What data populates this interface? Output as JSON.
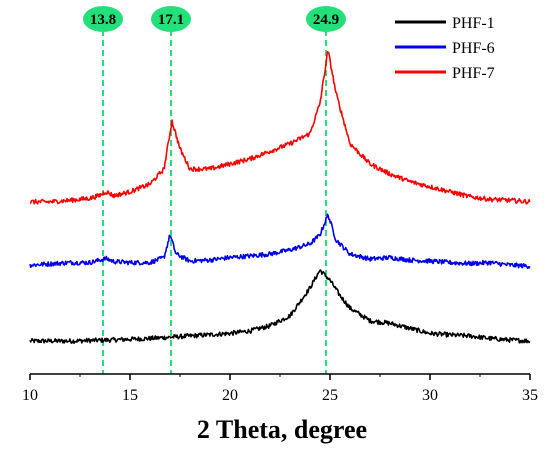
{
  "chart_data": {
    "type": "line",
    "xlabel": "2 Theta, degree",
    "ylabel": "",
    "xlim": [
      10,
      35
    ],
    "xticks": [
      10,
      15,
      20,
      25,
      30,
      35
    ],
    "y_axis_shown": false,
    "grid": false,
    "legend_position": "top-right",
    "annotations": [
      {
        "label": "13.8",
        "x": 13.65,
        "color": "#23e07a"
      },
      {
        "label": "17.1",
        "x": 17.05,
        "color": "#23e07a"
      },
      {
        "label": "24.9",
        "x": 24.8,
        "color": "#23e07a"
      }
    ],
    "series": [
      {
        "name": "PHF-1",
        "color": "#000000",
        "baseline": 0.0,
        "points": [
          [
            10,
            0.0
          ],
          [
            12,
            0.0
          ],
          [
            14,
            0.02
          ],
          [
            16,
            0.05
          ],
          [
            18,
            0.1
          ],
          [
            20,
            0.15
          ],
          [
            21,
            0.2
          ],
          [
            22,
            0.3
          ],
          [
            23,
            0.5
          ],
          [
            24,
            1.05
          ],
          [
            24.5,
            1.4
          ],
          [
            25,
            1.2
          ],
          [
            25.5,
            0.9
          ],
          [
            26,
            0.65
          ],
          [
            27,
            0.4
          ],
          [
            28,
            0.35
          ],
          [
            29,
            0.25
          ],
          [
            30,
            0.15
          ],
          [
            31,
            0.12
          ],
          [
            32,
            0.1
          ],
          [
            33,
            0.05
          ],
          [
            34,
            0.02
          ],
          [
            35,
            0.0
          ]
        ]
      },
      {
        "name": "PHF-6",
        "color": "#0000ee",
        "baseline": 1.5,
        "points": [
          [
            10,
            1.5
          ],
          [
            12,
            1.55
          ],
          [
            13,
            1.55
          ],
          [
            13.5,
            1.6
          ],
          [
            13.8,
            1.63
          ],
          [
            14.2,
            1.57
          ],
          [
            15,
            1.55
          ],
          [
            16,
            1.55
          ],
          [
            16.7,
            1.65
          ],
          [
            17.0,
            2.1
          ],
          [
            17.3,
            1.72
          ],
          [
            18,
            1.58
          ],
          [
            19,
            1.6
          ],
          [
            20,
            1.65
          ],
          [
            21,
            1.68
          ],
          [
            22,
            1.72
          ],
          [
            23,
            1.8
          ],
          [
            24,
            1.92
          ],
          [
            24.5,
            2.1
          ],
          [
            24.9,
            2.5
          ],
          [
            25.3,
            2.0
          ],
          [
            26,
            1.72
          ],
          [
            27,
            1.62
          ],
          [
            28,
            1.65
          ],
          [
            29,
            1.6
          ],
          [
            30,
            1.58
          ],
          [
            31,
            1.55
          ],
          [
            32,
            1.53
          ],
          [
            33,
            1.55
          ],
          [
            34,
            1.5
          ],
          [
            35,
            1.48
          ]
        ]
      },
      {
        "name": "PHF-7",
        "color": "#ff0000",
        "baseline": 2.7,
        "points": [
          [
            10,
            2.75
          ],
          [
            11,
            2.75
          ],
          [
            12,
            2.78
          ],
          [
            13,
            2.82
          ],
          [
            13.5,
            2.88
          ],
          [
            13.8,
            2.95
          ],
          [
            14.2,
            2.87
          ],
          [
            15,
            2.95
          ],
          [
            16,
            3.1
          ],
          [
            16.7,
            3.4
          ],
          [
            17.1,
            4.35
          ],
          [
            17.5,
            3.8
          ],
          [
            18,
            3.4
          ],
          [
            19,
            3.4
          ],
          [
            20,
            3.5
          ],
          [
            21,
            3.6
          ],
          [
            22,
            3.75
          ],
          [
            23,
            3.9
          ],
          [
            24,
            4.1
          ],
          [
            24.5,
            4.7
          ],
          [
            24.9,
            5.75
          ],
          [
            25.3,
            4.9
          ],
          [
            26,
            3.9
          ],
          [
            27,
            3.5
          ],
          [
            28,
            3.3
          ],
          [
            29,
            3.15
          ],
          [
            30,
            3.05
          ],
          [
            31,
            2.95
          ],
          [
            32,
            2.85
          ],
          [
            33,
            2.8
          ],
          [
            34,
            2.78
          ],
          [
            35,
            2.75
          ]
        ]
      }
    ]
  }
}
